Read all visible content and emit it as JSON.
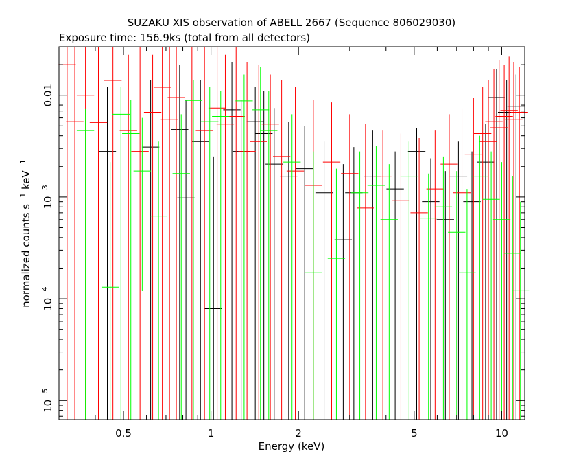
{
  "chart_data": {
    "type": "scatter",
    "title": "SUZAKU XIS observation of ABELL 2667 (Sequence 806029030)",
    "subtitle": "Exposure time: 156.9ks (total from all detectors)",
    "xlabel": "Energy (keV)",
    "ylabel": {
      "main": "normalized counts s",
      "exp1": "−1",
      "mid": " keV",
      "exp2": "−1"
    },
    "x_scale": "log",
    "y_scale": "log",
    "xlim": [
      0.3,
      12
    ],
    "ylim": [
      6.5e-06,
      0.03
    ],
    "x_ticks": [
      {
        "value": 0.5,
        "label": "0.5"
      },
      {
        "value": 1,
        "label": "1"
      },
      {
        "value": 2,
        "label": "2"
      },
      {
        "value": 5,
        "label": "5"
      },
      {
        "value": 10,
        "label": "10"
      }
    ],
    "y_ticks": [
      {
        "value": 0.01,
        "label": "0.01",
        "exp": ""
      },
      {
        "value": 0.001,
        "label": "10",
        "exp": "−3"
      },
      {
        "value": 0.0001,
        "label": "10",
        "exp": "−4"
      },
      {
        "value": 1e-05,
        "label": "10",
        "exp": "−5"
      }
    ],
    "grid": false,
    "legend": "none",
    "series": [
      {
        "color": "#000000",
        "points": [
          {
            "x": 0.44,
            "y": 0.0028,
            "ylo": 6.5e-06,
            "yhi": 0.012
          },
          {
            "x": 0.62,
            "y": 0.0031,
            "ylo": 6.5e-06,
            "yhi": 0.014
          },
          {
            "x": 0.78,
            "y": 0.0046,
            "ylo": 6.5e-06,
            "yhi": 0.02
          },
          {
            "x": 0.82,
            "y": 0.00098,
            "ylo": 6.5e-06,
            "yhi": 0.009
          },
          {
            "x": 0.92,
            "y": 0.0035,
            "ylo": 6.5e-06,
            "yhi": 0.014
          },
          {
            "x": 1.02,
            "y": 8e-05,
            "ylo": 6.5e-06,
            "yhi": 0.0025
          },
          {
            "x": 1.18,
            "y": 0.0072,
            "ylo": 6.5e-06,
            "yhi": 0.021
          },
          {
            "x": 1.27,
            "y": 0.0028,
            "ylo": 6.5e-06,
            "yhi": 0.009
          },
          {
            "x": 1.42,
            "y": 0.0055,
            "ylo": 6.5e-06,
            "yhi": 0.012
          },
          {
            "x": 1.52,
            "y": 0.0042,
            "ylo": 6.5e-06,
            "yhi": 0.011
          },
          {
            "x": 1.65,
            "y": 0.0021,
            "ylo": 6.5e-06,
            "yhi": 0.0075
          },
          {
            "x": 1.85,
            "y": 0.0016,
            "ylo": 6.5e-06,
            "yhi": 0.0055
          },
          {
            "x": 2.1,
            "y": 0.0019,
            "ylo": 6.5e-06,
            "yhi": 0.005
          },
          {
            "x": 2.45,
            "y": 0.0011,
            "ylo": 6.5e-06,
            "yhi": 0.0035
          },
          {
            "x": 2.85,
            "y": 0.00038,
            "ylo": 6.5e-06,
            "yhi": 0.0021
          },
          {
            "x": 3.1,
            "y": 0.0011,
            "ylo": 6.5e-06,
            "yhi": 0.0031
          },
          {
            "x": 3.6,
            "y": 0.0016,
            "ylo": 6.5e-06,
            "yhi": 0.0045
          },
          {
            "x": 4.3,
            "y": 0.0012,
            "ylo": 6.5e-06,
            "yhi": 0.0028
          },
          {
            "x": 5.1,
            "y": 0.0028,
            "ylo": 6.5e-06,
            "yhi": 0.0048
          },
          {
            "x": 5.7,
            "y": 0.0009,
            "ylo": 6.5e-06,
            "yhi": 0.0024
          },
          {
            "x": 6.4,
            "y": 0.0006,
            "ylo": 6.5e-06,
            "yhi": 0.0018
          },
          {
            "x": 7.1,
            "y": 0.0016,
            "ylo": 6.5e-06,
            "yhi": 0.0035
          },
          {
            "x": 7.9,
            "y": 0.0009,
            "ylo": 6.5e-06,
            "yhi": 0.0028
          },
          {
            "x": 8.8,
            "y": 0.0022,
            "ylo": 6.5e-06,
            "yhi": 0.0052
          },
          {
            "x": 9.6,
            "y": 0.0095,
            "ylo": 6.5e-06,
            "yhi": 0.018
          },
          {
            "x": 10.4,
            "y": 0.0068,
            "ylo": 6.5e-06,
            "yhi": 0.014
          },
          {
            "x": 11.2,
            "y": 0.0078,
            "ylo": 6.5e-06,
            "yhi": 0.016
          }
        ]
      },
      {
        "color": "#ff0000",
        "points": [
          {
            "x": 0.32,
            "y": 0.02,
            "ylo": 6.5e-06,
            "yhi": 0.03
          },
          {
            "x": 0.34,
            "y": 0.0055,
            "ylo": 6.5e-06,
            "yhi": 0.03
          },
          {
            "x": 0.37,
            "y": 0.01,
            "ylo": 6.5e-06,
            "yhi": 0.03
          },
          {
            "x": 0.41,
            "y": 0.0054,
            "ylo": 6.5e-06,
            "yhi": 0.03
          },
          {
            "x": 0.46,
            "y": 0.014,
            "ylo": 6.5e-06,
            "yhi": 0.03
          },
          {
            "x": 0.52,
            "y": 0.0045,
            "ylo": 6.5e-06,
            "yhi": 0.025
          },
          {
            "x": 0.57,
            "y": 0.0028,
            "ylo": 6.5e-06,
            "yhi": 0.03
          },
          {
            "x": 0.63,
            "y": 0.0068,
            "ylo": 6.5e-06,
            "yhi": 0.025
          },
          {
            "x": 0.68,
            "y": 0.012,
            "ylo": 6.5e-06,
            "yhi": 0.03
          },
          {
            "x": 0.72,
            "y": 0.0058,
            "ylo": 6.5e-06,
            "yhi": 0.03
          },
          {
            "x": 0.76,
            "y": 0.0095,
            "ylo": 6.5e-06,
            "yhi": 0.03
          },
          {
            "x": 0.86,
            "y": 0.0082,
            "ylo": 6.5e-06,
            "yhi": 0.03
          },
          {
            "x": 0.95,
            "y": 0.0045,
            "ylo": 6.5e-06,
            "yhi": 0.03
          },
          {
            "x": 1.05,
            "y": 0.0075,
            "ylo": 6.5e-06,
            "yhi": 0.03
          },
          {
            "x": 1.12,
            "y": 0.0052,
            "ylo": 6.5e-06,
            "yhi": 0.025
          },
          {
            "x": 1.22,
            "y": 0.0062,
            "ylo": 6.5e-06,
            "yhi": 0.03
          },
          {
            "x": 1.33,
            "y": 0.0028,
            "ylo": 6.5e-06,
            "yhi": 0.021
          },
          {
            "x": 1.46,
            "y": 0.0035,
            "ylo": 6.5e-06,
            "yhi": 0.02
          },
          {
            "x": 1.6,
            "y": 0.0052,
            "ylo": 6.5e-06,
            "yhi": 0.016
          },
          {
            "x": 1.75,
            "y": 0.0025,
            "ylo": 6.5e-06,
            "yhi": 0.014
          },
          {
            "x": 1.95,
            "y": 0.0018,
            "ylo": 6.5e-06,
            "yhi": 0.012
          },
          {
            "x": 2.25,
            "y": 0.0013,
            "ylo": 6.5e-06,
            "yhi": 0.009
          },
          {
            "x": 2.6,
            "y": 0.0022,
            "ylo": 6.5e-06,
            "yhi": 0.0085
          },
          {
            "x": 3.0,
            "y": 0.0017,
            "ylo": 6.5e-06,
            "yhi": 0.0065
          },
          {
            "x": 3.4,
            "y": 0.00078,
            "ylo": 6.5e-06,
            "yhi": 0.0052
          },
          {
            "x": 3.9,
            "y": 0.0016,
            "ylo": 6.5e-06,
            "yhi": 0.0045
          },
          {
            "x": 4.5,
            "y": 0.00092,
            "ylo": 6.5e-06,
            "yhi": 0.0042
          },
          {
            "x": 5.2,
            "y": 0.0007,
            "ylo": 6.5e-06,
            "yhi": 0.0038
          },
          {
            "x": 5.9,
            "y": 0.0012,
            "ylo": 6.5e-06,
            "yhi": 0.0045
          },
          {
            "x": 6.6,
            "y": 0.0021,
            "ylo": 6.5e-06,
            "yhi": 0.0065
          },
          {
            "x": 7.3,
            "y": 0.0011,
            "ylo": 6.5e-06,
            "yhi": 0.0075
          },
          {
            "x": 8.0,
            "y": 0.0026,
            "ylo": 6.5e-06,
            "yhi": 0.0095
          },
          {
            "x": 8.6,
            "y": 0.0042,
            "ylo": 6.5e-06,
            "yhi": 0.012
          },
          {
            "x": 9.0,
            "y": 0.0035,
            "ylo": 6.5e-06,
            "yhi": 0.014
          },
          {
            "x": 9.4,
            "y": 0.0055,
            "ylo": 6.5e-06,
            "yhi": 0.018
          },
          {
            "x": 9.8,
            "y": 0.0048,
            "ylo": 6.5e-06,
            "yhi": 0.022
          },
          {
            "x": 10.2,
            "y": 0.0062,
            "ylo": 6.5e-06,
            "yhi": 0.02
          },
          {
            "x": 10.6,
            "y": 0.0071,
            "ylo": 6.5e-06,
            "yhi": 0.024
          },
          {
            "x": 11.0,
            "y": 0.0058,
            "ylo": 6.5e-06,
            "yhi": 0.021
          },
          {
            "x": 11.5,
            "y": 0.0068,
            "ylo": 6.5e-06,
            "yhi": 0.019
          }
        ]
      },
      {
        "color": "#00ff00",
        "points": [
          {
            "x": 0.37,
            "y": 0.0045,
            "ylo": 6.5e-06,
            "yhi": 0.0074
          },
          {
            "x": 0.45,
            "y": 0.00013,
            "ylo": 6.5e-06,
            "yhi": 0.0022
          },
          {
            "x": 0.49,
            "y": 0.0065,
            "ylo": 6.5e-06,
            "yhi": 0.012
          },
          {
            "x": 0.53,
            "y": 0.0042,
            "ylo": 6.5e-06,
            "yhi": 0.009
          },
          {
            "x": 0.58,
            "y": 0.0018,
            "ylo": 0.00012,
            "yhi": 0.006
          },
          {
            "x": 0.66,
            "y": 0.00065,
            "ylo": 6.5e-06,
            "yhi": 0.0035
          },
          {
            "x": 0.79,
            "y": 0.0017,
            "ylo": 6.5e-06,
            "yhi": 0.0065
          },
          {
            "x": 0.87,
            "y": 0.0089,
            "ylo": 6.5e-06,
            "yhi": 0.014
          },
          {
            "x": 0.99,
            "y": 0.0055,
            "ylo": 6.5e-06,
            "yhi": 0.012
          },
          {
            "x": 1.08,
            "y": 0.0062,
            "ylo": 6.5e-06,
            "yhi": 0.011
          },
          {
            "x": 1.3,
            "y": 0.0088,
            "ylo": 6.5e-06,
            "yhi": 0.016
          },
          {
            "x": 1.48,
            "y": 0.0072,
            "ylo": 6.5e-06,
            "yhi": 0.019
          },
          {
            "x": 1.58,
            "y": 0.0045,
            "ylo": 6.5e-06,
            "yhi": 0.011
          },
          {
            "x": 1.9,
            "y": 0.0022,
            "ylo": 6.5e-06,
            "yhi": 0.0065
          },
          {
            "x": 2.25,
            "y": 0.00018,
            "ylo": 6.5e-06,
            "yhi": 0.0028
          },
          {
            "x": 2.7,
            "y": 0.00025,
            "ylo": 6.5e-06,
            "yhi": 0.0019
          },
          {
            "x": 3.25,
            "y": 0.0011,
            "ylo": 6.5e-06,
            "yhi": 0.0028
          },
          {
            "x": 3.7,
            "y": 0.0013,
            "ylo": 6.5e-06,
            "yhi": 0.0032
          },
          {
            "x": 4.1,
            "y": 0.0006,
            "ylo": 6.5e-06,
            "yhi": 0.0021
          },
          {
            "x": 4.8,
            "y": 0.0016,
            "ylo": 6.5e-06,
            "yhi": 0.0035
          },
          {
            "x": 5.6,
            "y": 0.00062,
            "ylo": 6.5e-06,
            "yhi": 0.0017
          },
          {
            "x": 6.3,
            "y": 0.0008,
            "ylo": 6.5e-06,
            "yhi": 0.0025
          },
          {
            "x": 7.0,
            "y": 0.00045,
            "ylo": 6.5e-06,
            "yhi": 0.0018
          },
          {
            "x": 7.6,
            "y": 0.00018,
            "ylo": 6.5e-06,
            "yhi": 0.0012
          },
          {
            "x": 8.4,
            "y": 0.0016,
            "ylo": 6.5e-06,
            "yhi": 0.004
          },
          {
            "x": 9.2,
            "y": 0.00095,
            "ylo": 6.5e-06,
            "yhi": 0.0028
          },
          {
            "x": 10.0,
            "y": 0.0006,
            "ylo": 6.5e-06,
            "yhi": 0.0022
          },
          {
            "x": 10.9,
            "y": 0.00028,
            "ylo": 6.5e-06,
            "yhi": 0.0016
          },
          {
            "x": 11.6,
            "y": 0.00012,
            "ylo": 6.5e-06,
            "yhi": 0.0009
          }
        ]
      }
    ]
  }
}
